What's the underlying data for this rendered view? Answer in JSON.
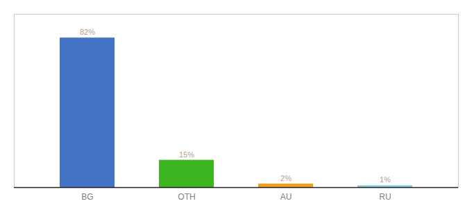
{
  "chart_data": {
    "type": "bar",
    "categories": [
      "BG",
      "OTH",
      "AU",
      "RU"
    ],
    "values": [
      82,
      15,
      2,
      1
    ],
    "value_labels": [
      "82%",
      "15%",
      "2%",
      "1%"
    ],
    "colors": [
      "#4472c4",
      "#3cb521",
      "#f0a020",
      "#7ec8e3"
    ],
    "ylim": [
      0,
      95
    ],
    "data_labels": true,
    "tick_labels": "x",
    "grid": false
  }
}
